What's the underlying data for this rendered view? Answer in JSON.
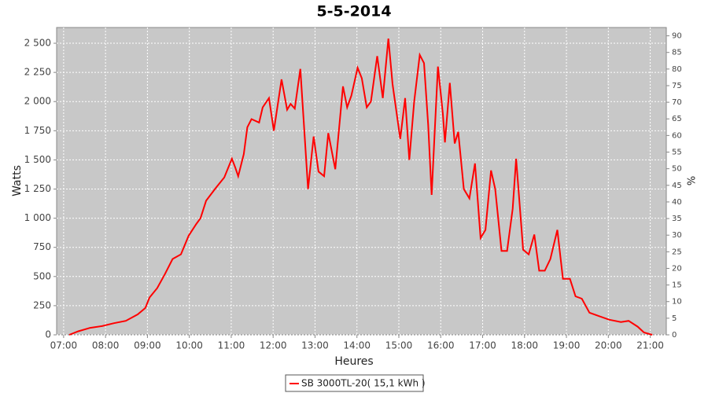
{
  "chart_data": {
    "type": "line",
    "title": "5-5-2014",
    "x_label": "Heures",
    "y_label": "Watts",
    "y2_label": "%",
    "xlim": [
      "06:50",
      "21:23"
    ],
    "xticks": [
      "07:00",
      "08:00",
      "09:00",
      "10:00",
      "11:00",
      "12:00",
      "13:00",
      "14:00",
      "15:00",
      "16:00",
      "17:00",
      "18:00",
      "19:00",
      "20:00",
      "21:00"
    ],
    "ylim": [
      0,
      2635
    ],
    "yticks": [
      0,
      250,
      500,
      750,
      {
        "value": 1000,
        "label": "1 000"
      },
      {
        "value": 1250,
        "label": "1 250"
      },
      {
        "value": 1500,
        "label": "1 500"
      },
      {
        "value": 1750,
        "label": "1 750"
      },
      {
        "value": 2000,
        "label": "2 000"
      },
      {
        "value": 2250,
        "label": "2 250"
      },
      {
        "value": 2500,
        "label": "2 500"
      }
    ],
    "y2lim": [
      0,
      92.5
    ],
    "y2ticks": [
      0,
      5,
      10,
      15,
      20,
      25,
      30,
      35,
      40,
      45,
      50,
      55,
      60,
      65,
      70,
      75,
      80,
      85,
      90
    ],
    "grid": true,
    "legend": "bottom",
    "x": [
      "07:08",
      "07:21",
      "07:38",
      "07:55",
      "08:12",
      "08:29",
      "08:46",
      "08:57",
      "09:03",
      "09:14",
      "09:25",
      "09:36",
      "09:48",
      "09:59",
      "10:10",
      "10:16",
      "10:24",
      "10:38",
      "10:50",
      "11:01",
      "11:06",
      "11:10",
      "11:18",
      "11:23",
      "11:29",
      "11:40",
      "11:45",
      "11:54",
      "12:01",
      "12:12",
      "12:20",
      "12:25",
      "12:31",
      "12:39",
      "12:50",
      "12:58",
      "13:05",
      "13:13",
      "13:19",
      "13:29",
      "13:40",
      "13:46",
      "13:52",
      "14:01",
      "14:07",
      "14:14",
      "14:20",
      "14:29",
      "14:37",
      "14:45",
      "14:51",
      "15:02",
      "15:09",
      "15:15",
      "15:22",
      "15:30",
      "15:36",
      "15:42",
      "15:47",
      "15:51",
      "15:56",
      "16:03",
      "16:06",
      "16:13",
      "16:20",
      "16:25",
      "16:33",
      "16:41",
      "16:49",
      "16:57",
      "17:04",
      "17:12",
      "17:18",
      "17:27",
      "17:35",
      "17:43",
      "17:48",
      "17:58",
      "18:06",
      "18:14",
      "18:21",
      "18:29",
      "18:37",
      "18:47",
      "18:55",
      "19:05",
      "19:13",
      "19:22",
      "19:33",
      "19:47",
      "20:01",
      "20:18",
      "20:29",
      "20:42",
      "20:51",
      "21:03"
    ],
    "series": [
      {
        "name": "SB 3000TL-20( 15,1 kWh )",
        "color": "#ff0000",
        "values": [
          0,
          30,
          60,
          75,
          100,
          120,
          175,
          230,
          320,
          400,
          520,
          650,
          690,
          850,
          950,
          1000,
          1150,
          1260,
          1350,
          1510,
          1430,
          1360,
          1550,
          1780,
          1850,
          1820,
          1950,
          2030,
          1750,
          2190,
          1930,
          1980,
          1940,
          2280,
          1250,
          1700,
          1400,
          1360,
          1730,
          1420,
          2130,
          1950,
          2050,
          2290,
          2200,
          1950,
          2000,
          2390,
          2030,
          2540,
          2150,
          1680,
          2030,
          1500,
          2000,
          2400,
          2330,
          1800,
          1200,
          1700,
          2300,
          1900,
          1650,
          2160,
          1640,
          1740,
          1250,
          1170,
          1470,
          830,
          900,
          1410,
          1250,
          720,
          720,
          1080,
          1510,
          730,
          690,
          860,
          550,
          550,
          650,
          900,
          480,
          480,
          330,
          310,
          190,
          160,
          130,
          110,
          120,
          70,
          20,
          0
        ]
      }
    ]
  }
}
